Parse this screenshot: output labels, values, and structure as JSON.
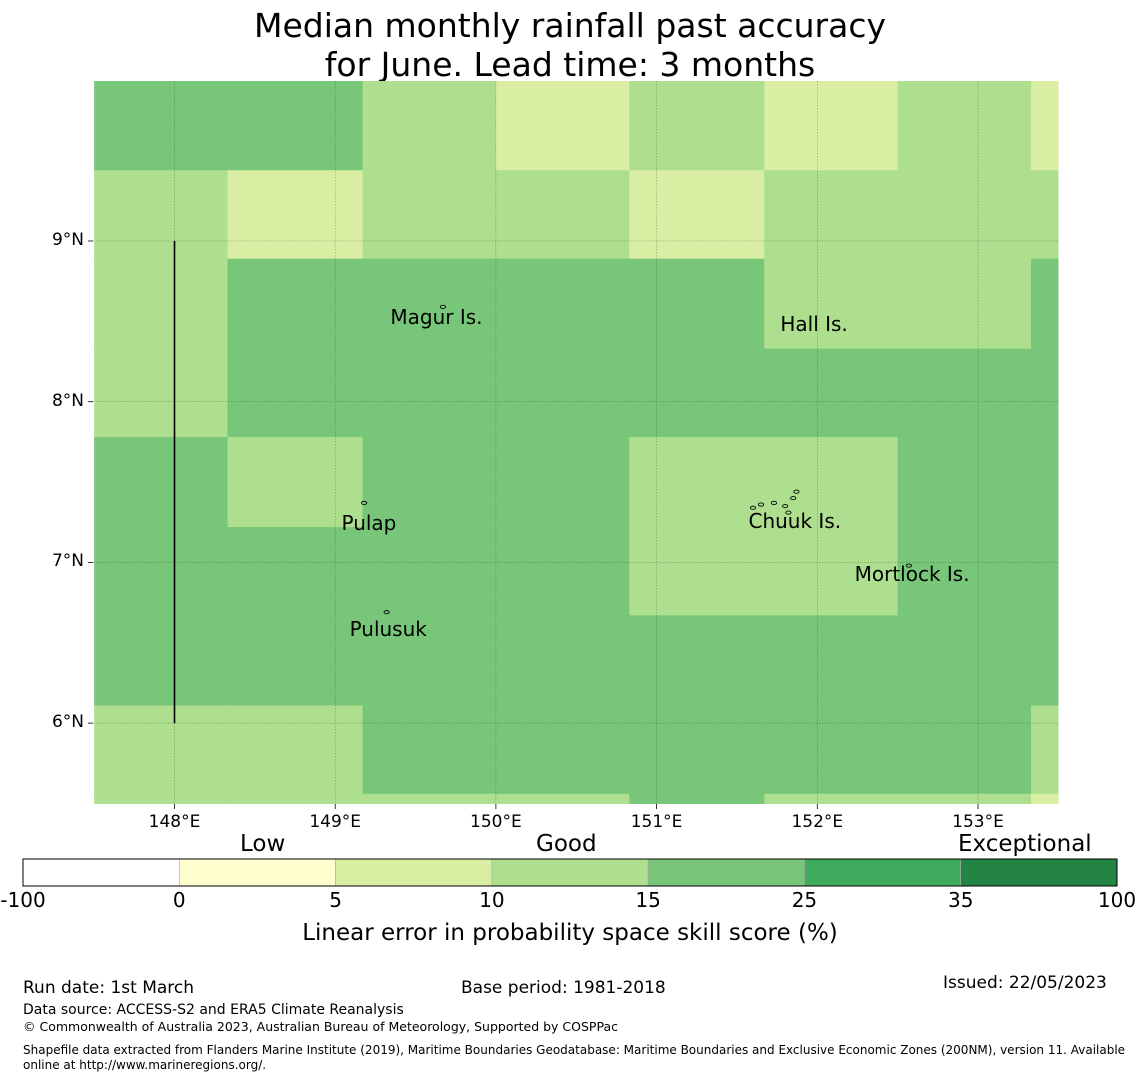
{
  "title": {
    "line1": "Median monthly rainfall past accuracy",
    "line2": "for June. Lead time: 3 months"
  },
  "map": {
    "lon_range": [
      147.5,
      153.5
    ],
    "lat_range": [
      5.5,
      10.0
    ],
    "lon_ticks": [
      {
        "value": 148,
        "label": "148°E"
      },
      {
        "value": 149,
        "label": "149°E"
      },
      {
        "value": 150,
        "label": "150°E"
      },
      {
        "value": 151,
        "label": "151°E"
      },
      {
        "value": 152,
        "label": "152°E"
      },
      {
        "value": 153,
        "label": "153°E"
      }
    ],
    "lat_ticks": [
      {
        "value": 9,
        "label": "9°N"
      },
      {
        "value": 8,
        "label": "8°N"
      },
      {
        "value": 7,
        "label": "7°N"
      },
      {
        "value": 6,
        "label": "6°N"
      }
    ],
    "cell_edges_lon": [
      147.5,
      148.33,
      149.17,
      150.0,
      150.83,
      151.67,
      152.5,
      153.33,
      153.5
    ],
    "cell_edges_lat": [
      10.0,
      9.44,
      8.89,
      8.33,
      7.78,
      7.22,
      6.67,
      6.11,
      5.56,
      5.5
    ],
    "grid_categories": [
      [
        4,
        4,
        3,
        2,
        3,
        2,
        3,
        2
      ],
      [
        3,
        2,
        3,
        3,
        2,
        3,
        3,
        3
      ],
      [
        3,
        4,
        4,
        4,
        4,
        3,
        3,
        4
      ],
      [
        3,
        4,
        4,
        4,
        4,
        4,
        4,
        4
      ],
      [
        4,
        3,
        4,
        4,
        3,
        3,
        4,
        4
      ],
      [
        4,
        4,
        4,
        4,
        3,
        3,
        4,
        4
      ],
      [
        4,
        4,
        4,
        4,
        4,
        4,
        4,
        4
      ],
      [
        3,
        3,
        4,
        4,
        4,
        4,
        4,
        3
      ],
      [
        3,
        3,
        3,
        3,
        4,
        3,
        3,
        2
      ]
    ],
    "reference_line": {
      "lon": 148.0,
      "lat_from": 6.0,
      "lat_to": 9.0
    },
    "places": [
      {
        "name": "Magur Is.",
        "lon": 149.63,
        "lat": 8.52
      },
      {
        "name": "Hall Is.",
        "lon": 151.98,
        "lat": 8.48
      },
      {
        "name": "Pulap",
        "lon": 149.21,
        "lat": 7.24
      },
      {
        "name": "Chuuk Is.",
        "lon": 151.86,
        "lat": 7.25
      },
      {
        "name": "Mortlock Is.",
        "lon": 152.59,
        "lat": 6.92
      },
      {
        "name": "Pulusuk",
        "lon": 149.33,
        "lat": 6.58
      }
    ],
    "island_markers": [
      {
        "lon": 149.67,
        "lat": 8.59
      },
      {
        "lon": 149.18,
        "lat": 7.37
      },
      {
        "lon": 149.32,
        "lat": 6.69
      },
      {
        "lon": 151.6,
        "lat": 7.34
      },
      {
        "lon": 151.65,
        "lat": 7.36
      },
      {
        "lon": 151.73,
        "lat": 7.37
      },
      {
        "lon": 151.8,
        "lat": 7.35
      },
      {
        "lon": 151.85,
        "lat": 7.4
      },
      {
        "lon": 151.87,
        "lat": 7.44
      },
      {
        "lon": 151.82,
        "lat": 7.31
      },
      {
        "lon": 152.57,
        "lat": 6.98
      }
    ]
  },
  "colorbar": {
    "categories": [
      "Low",
      "Good",
      "Exceptional"
    ],
    "bounds": [
      "-100",
      "0",
      "5",
      "10",
      "15",
      "25",
      "35",
      "100"
    ],
    "colors": [
      "#ffffff",
      "#fefece",
      "#daeea3",
      "#addf8e",
      "#78c679",
      "#41ab5d",
      "#238443"
    ],
    "label": "Linear error in probability space skill score (%)"
  },
  "footer": {
    "run_date": "Run date: 1st March",
    "base_period": "Base period: 1981-2018",
    "issued": "Issued: 22/05/2023",
    "data_source": "Data source: ACCESS-S2 and ERA5 Climate Reanalysis",
    "copyright": "© Commonwealth of Australia 2023, Australian Bureau of Meteorology, Supported by COSPPac",
    "shapefile_line1": "Shapefile data extracted from Flanders Marine Institute (2019), Maritime Boundaries Geodatabase: Maritime Boundaries and Exclusive Economic Zones (200NM), version 11. Available",
    "shapefile_line2": "online at http://www.marineregions.org/."
  }
}
